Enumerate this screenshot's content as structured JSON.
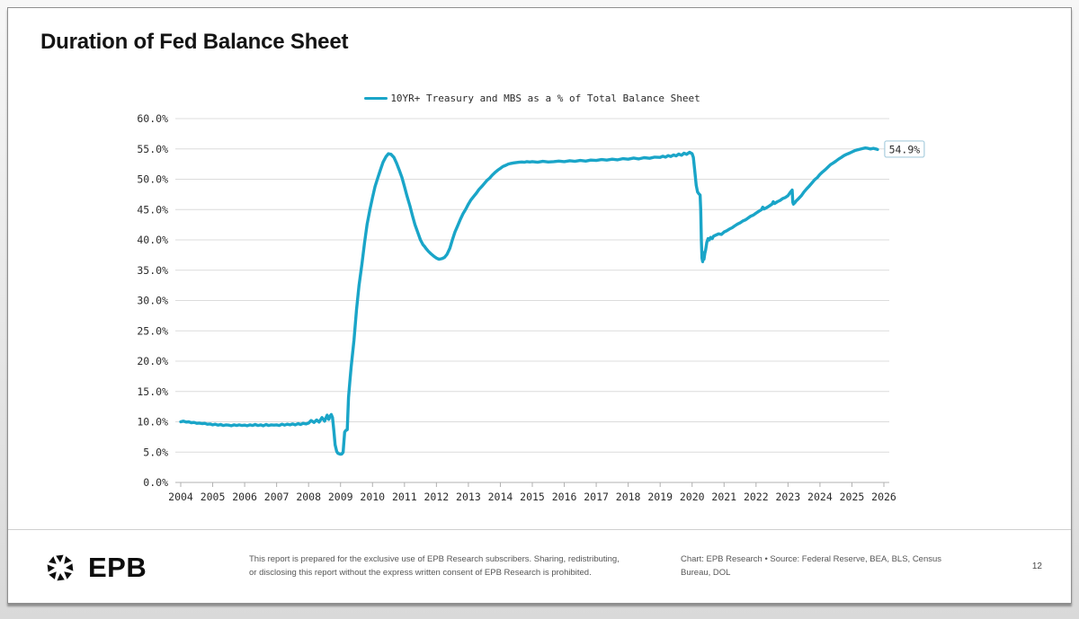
{
  "page": {
    "title": "Duration of Fed Balance Sheet",
    "page_number": "12"
  },
  "footer": {
    "brand": "EPB",
    "disclaimer_line1": "This report is prepared for the exclusive use of EPB Research subscribers. Sharing, redistributing,",
    "disclaimer_line2": "or disclosing this report without the express written consent of EPB Research is prohibited.",
    "source_text": "Chart: EPB Research  •  Source: Federal Reserve, BEA, BLS, Census Bureau, DOL"
  },
  "chart_data": {
    "type": "line",
    "title": "Duration of Fed Balance Sheet",
    "legend_label": "10YR+ Treasury and MBS as a % of Total Balance Sheet",
    "legend_position": "top-center",
    "line_color": "#1aa5c8",
    "grid": true,
    "grid_color": "#dcdcdc",
    "axis_color": "#b0b0b0",
    "xlabel": "",
    "ylabel": "",
    "xlim": [
      2004,
      2026
    ],
    "ylim": [
      0,
      60
    ],
    "xticks": [
      2004,
      2005,
      2006,
      2007,
      2008,
      2009,
      2010,
      2011,
      2012,
      2013,
      2014,
      2015,
      2016,
      2017,
      2018,
      2019,
      2020,
      2021,
      2022,
      2023,
      2024,
      2025,
      2026
    ],
    "yticks": [
      0,
      5,
      10,
      15,
      20,
      25,
      30,
      35,
      40,
      45,
      50,
      55,
      60
    ],
    "ytick_labels": [
      "0.0%",
      "5.0%",
      "10.0%",
      "15.0%",
      "20.0%",
      "25.0%",
      "30.0%",
      "35.0%",
      "40.0%",
      "45.0%",
      "50.0%",
      "55.0%",
      "60.0%"
    ],
    "end_label": "54.9%",
    "end_label_border": "#a9cede",
    "series": [
      {
        "name": "10YR+ Treasury and MBS as a % of Total Balance Sheet",
        "points": [
          [
            2004.0,
            10.0
          ],
          [
            2004.08,
            10.1
          ],
          [
            2004.17,
            9.95
          ],
          [
            2004.25,
            10.0
          ],
          [
            2004.33,
            9.85
          ],
          [
            2004.42,
            9.9
          ],
          [
            2004.5,
            9.75
          ],
          [
            2004.58,
            9.8
          ],
          [
            2004.67,
            9.7
          ],
          [
            2004.75,
            9.75
          ],
          [
            2004.83,
            9.6
          ],
          [
            2004.92,
            9.65
          ],
          [
            2005.0,
            9.5
          ],
          [
            2005.08,
            9.6
          ],
          [
            2005.17,
            9.45
          ],
          [
            2005.25,
            9.55
          ],
          [
            2005.33,
            9.4
          ],
          [
            2005.42,
            9.5
          ],
          [
            2005.5,
            9.45
          ],
          [
            2005.58,
            9.35
          ],
          [
            2005.67,
            9.5
          ],
          [
            2005.75,
            9.4
          ],
          [
            2005.83,
            9.5
          ],
          [
            2005.92,
            9.4
          ],
          [
            2006.0,
            9.45
          ],
          [
            2006.08,
            9.35
          ],
          [
            2006.17,
            9.5
          ],
          [
            2006.25,
            9.4
          ],
          [
            2006.33,
            9.55
          ],
          [
            2006.42,
            9.4
          ],
          [
            2006.5,
            9.5
          ],
          [
            2006.58,
            9.35
          ],
          [
            2006.67,
            9.55
          ],
          [
            2006.75,
            9.4
          ],
          [
            2006.83,
            9.5
          ],
          [
            2006.92,
            9.45
          ],
          [
            2007.0,
            9.5
          ],
          [
            2007.08,
            9.4
          ],
          [
            2007.17,
            9.6
          ],
          [
            2007.25,
            9.45
          ],
          [
            2007.33,
            9.6
          ],
          [
            2007.42,
            9.5
          ],
          [
            2007.5,
            9.65
          ],
          [
            2007.58,
            9.5
          ],
          [
            2007.67,
            9.7
          ],
          [
            2007.75,
            9.55
          ],
          [
            2007.83,
            9.75
          ],
          [
            2007.92,
            9.65
          ],
          [
            2008.0,
            9.8
          ],
          [
            2008.08,
            10.2
          ],
          [
            2008.17,
            9.9
          ],
          [
            2008.25,
            10.3
          ],
          [
            2008.33,
            9.95
          ],
          [
            2008.42,
            10.7
          ],
          [
            2008.5,
            10.1
          ],
          [
            2008.58,
            11.1
          ],
          [
            2008.63,
            10.4
          ],
          [
            2008.67,
            10.9
          ],
          [
            2008.71,
            11.2
          ],
          [
            2008.75,
            10.7
          ],
          [
            2008.79,
            8.5
          ],
          [
            2008.83,
            6.2
          ],
          [
            2008.88,
            5.1
          ],
          [
            2008.92,
            4.8
          ],
          [
            2009.0,
            4.65
          ],
          [
            2009.04,
            4.7
          ],
          [
            2009.08,
            5.0
          ],
          [
            2009.13,
            8.3
          ],
          [
            2009.17,
            8.6
          ],
          [
            2009.21,
            8.7
          ],
          [
            2009.25,
            14.0
          ],
          [
            2009.29,
            16.5
          ],
          [
            2009.33,
            19.0
          ],
          [
            2009.42,
            23.5
          ],
          [
            2009.5,
            28.5
          ],
          [
            2009.58,
            32.5
          ],
          [
            2009.67,
            36.0
          ],
          [
            2009.75,
            39.5
          ],
          [
            2009.83,
            42.5
          ],
          [
            2009.92,
            45.0
          ],
          [
            2010.0,
            47.0
          ],
          [
            2010.08,
            48.8
          ],
          [
            2010.17,
            50.3
          ],
          [
            2010.25,
            51.6
          ],
          [
            2010.33,
            52.8
          ],
          [
            2010.42,
            53.7
          ],
          [
            2010.5,
            54.2
          ],
          [
            2010.58,
            54.1
          ],
          [
            2010.67,
            53.6
          ],
          [
            2010.75,
            52.7
          ],
          [
            2010.83,
            51.6
          ],
          [
            2010.92,
            50.3
          ],
          [
            2011.0,
            48.8
          ],
          [
            2011.08,
            47.2
          ],
          [
            2011.17,
            45.6
          ],
          [
            2011.25,
            44.0
          ],
          [
            2011.33,
            42.5
          ],
          [
            2011.42,
            41.2
          ],
          [
            2011.5,
            40.0
          ],
          [
            2011.58,
            39.2
          ],
          [
            2011.63,
            38.9
          ],
          [
            2011.67,
            38.6
          ],
          [
            2011.75,
            38.1
          ],
          [
            2011.83,
            37.7
          ],
          [
            2011.92,
            37.3
          ],
          [
            2012.0,
            37.0
          ],
          [
            2012.08,
            36.8
          ],
          [
            2012.17,
            36.9
          ],
          [
            2012.25,
            37.1
          ],
          [
            2012.33,
            37.6
          ],
          [
            2012.42,
            38.6
          ],
          [
            2012.5,
            40.0
          ],
          [
            2012.58,
            41.3
          ],
          [
            2012.67,
            42.4
          ],
          [
            2012.75,
            43.4
          ],
          [
            2012.83,
            44.3
          ],
          [
            2012.92,
            45.1
          ],
          [
            2013.0,
            45.9
          ],
          [
            2013.08,
            46.6
          ],
          [
            2013.17,
            47.2
          ],
          [
            2013.25,
            47.7
          ],
          [
            2013.33,
            48.3
          ],
          [
            2013.42,
            48.8
          ],
          [
            2013.5,
            49.3
          ],
          [
            2013.58,
            49.8
          ],
          [
            2013.67,
            50.2
          ],
          [
            2013.75,
            50.7
          ],
          [
            2013.83,
            51.1
          ],
          [
            2013.92,
            51.5
          ],
          [
            2014.0,
            51.8
          ],
          [
            2014.08,
            52.1
          ],
          [
            2014.17,
            52.3
          ],
          [
            2014.25,
            52.5
          ],
          [
            2014.33,
            52.6
          ],
          [
            2014.42,
            52.7
          ],
          [
            2014.5,
            52.75
          ],
          [
            2014.58,
            52.8
          ],
          [
            2014.67,
            52.85
          ],
          [
            2014.75,
            52.8
          ],
          [
            2014.83,
            52.9
          ],
          [
            2014.92,
            52.85
          ],
          [
            2015.0,
            52.9
          ],
          [
            2015.17,
            52.8
          ],
          [
            2015.33,
            52.95
          ],
          [
            2015.5,
            52.85
          ],
          [
            2015.67,
            52.9
          ],
          [
            2015.83,
            53.0
          ],
          [
            2016.0,
            52.9
          ],
          [
            2016.17,
            53.05
          ],
          [
            2016.33,
            52.95
          ],
          [
            2016.5,
            53.1
          ],
          [
            2016.67,
            53.0
          ],
          [
            2016.83,
            53.15
          ],
          [
            2017.0,
            53.1
          ],
          [
            2017.17,
            53.25
          ],
          [
            2017.33,
            53.15
          ],
          [
            2017.5,
            53.3
          ],
          [
            2017.67,
            53.2
          ],
          [
            2017.83,
            53.4
          ],
          [
            2018.0,
            53.3
          ],
          [
            2018.17,
            53.5
          ],
          [
            2018.33,
            53.35
          ],
          [
            2018.5,
            53.55
          ],
          [
            2018.67,
            53.45
          ],
          [
            2018.83,
            53.65
          ],
          [
            2019.0,
            53.6
          ],
          [
            2019.08,
            53.8
          ],
          [
            2019.17,
            53.65
          ],
          [
            2019.25,
            53.9
          ],
          [
            2019.33,
            53.75
          ],
          [
            2019.42,
            54.0
          ],
          [
            2019.5,
            53.85
          ],
          [
            2019.58,
            54.15
          ],
          [
            2019.67,
            53.95
          ],
          [
            2019.75,
            54.3
          ],
          [
            2019.83,
            54.1
          ],
          [
            2019.92,
            54.45
          ],
          [
            2020.0,
            54.2
          ],
          [
            2020.04,
            53.6
          ],
          [
            2020.08,
            51.5
          ],
          [
            2020.13,
            49.0
          ],
          [
            2020.17,
            47.9
          ],
          [
            2020.21,
            47.6
          ],
          [
            2020.25,
            47.4
          ],
          [
            2020.27,
            45.0
          ],
          [
            2020.29,
            40.0
          ],
          [
            2020.31,
            37.0
          ],
          [
            2020.33,
            36.4
          ],
          [
            2020.35,
            37.9
          ],
          [
            2020.37,
            36.8
          ],
          [
            2020.4,
            37.8
          ],
          [
            2020.42,
            38.3
          ],
          [
            2020.46,
            39.6
          ],
          [
            2020.5,
            40.2
          ],
          [
            2020.54,
            40.0
          ],
          [
            2020.58,
            40.4
          ],
          [
            2020.63,
            40.2
          ],
          [
            2020.67,
            40.6
          ],
          [
            2020.75,
            40.8
          ],
          [
            2020.83,
            41.0
          ],
          [
            2020.92,
            40.9
          ],
          [
            2021.0,
            41.3
          ],
          [
            2021.08,
            41.5
          ],
          [
            2021.17,
            41.8
          ],
          [
            2021.25,
            42.0
          ],
          [
            2021.33,
            42.3
          ],
          [
            2021.42,
            42.6
          ],
          [
            2021.5,
            42.8
          ],
          [
            2021.58,
            43.1
          ],
          [
            2021.67,
            43.3
          ],
          [
            2021.75,
            43.6
          ],
          [
            2021.83,
            43.9
          ],
          [
            2021.92,
            44.1
          ],
          [
            2022.0,
            44.4
          ],
          [
            2022.08,
            44.7
          ],
          [
            2022.17,
            45.0
          ],
          [
            2022.21,
            45.4
          ],
          [
            2022.25,
            45.1
          ],
          [
            2022.33,
            45.3
          ],
          [
            2022.42,
            45.6
          ],
          [
            2022.5,
            45.9
          ],
          [
            2022.54,
            46.3
          ],
          [
            2022.58,
            46.0
          ],
          [
            2022.67,
            46.3
          ],
          [
            2022.75,
            46.5
          ],
          [
            2022.83,
            46.8
          ],
          [
            2022.92,
            47.0
          ],
          [
            2023.0,
            47.3
          ],
          [
            2023.04,
            47.6
          ],
          [
            2023.08,
            47.9
          ],
          [
            2023.13,
            48.2
          ],
          [
            2023.15,
            46.2
          ],
          [
            2023.17,
            45.9
          ],
          [
            2023.21,
            46.1
          ],
          [
            2023.25,
            46.4
          ],
          [
            2023.33,
            46.8
          ],
          [
            2023.42,
            47.3
          ],
          [
            2023.5,
            47.9
          ],
          [
            2023.58,
            48.4
          ],
          [
            2023.67,
            48.9
          ],
          [
            2023.75,
            49.4
          ],
          [
            2023.83,
            49.9
          ],
          [
            2023.92,
            50.3
          ],
          [
            2024.0,
            50.8
          ],
          [
            2024.08,
            51.2
          ],
          [
            2024.17,
            51.6
          ],
          [
            2024.25,
            52.0
          ],
          [
            2024.33,
            52.4
          ],
          [
            2024.42,
            52.7
          ],
          [
            2024.5,
            53.0
          ],
          [
            2024.58,
            53.3
          ],
          [
            2024.67,
            53.6
          ],
          [
            2024.75,
            53.9
          ],
          [
            2024.83,
            54.1
          ],
          [
            2024.92,
            54.3
          ],
          [
            2025.0,
            54.5
          ],
          [
            2025.08,
            54.7
          ],
          [
            2025.17,
            54.85
          ],
          [
            2025.25,
            54.95
          ],
          [
            2025.33,
            55.05
          ],
          [
            2025.42,
            55.15
          ],
          [
            2025.5,
            55.1
          ],
          [
            2025.58,
            55.0
          ],
          [
            2025.67,
            55.1
          ],
          [
            2025.75,
            55.0
          ],
          [
            2025.8,
            54.9
          ]
        ]
      }
    ]
  }
}
